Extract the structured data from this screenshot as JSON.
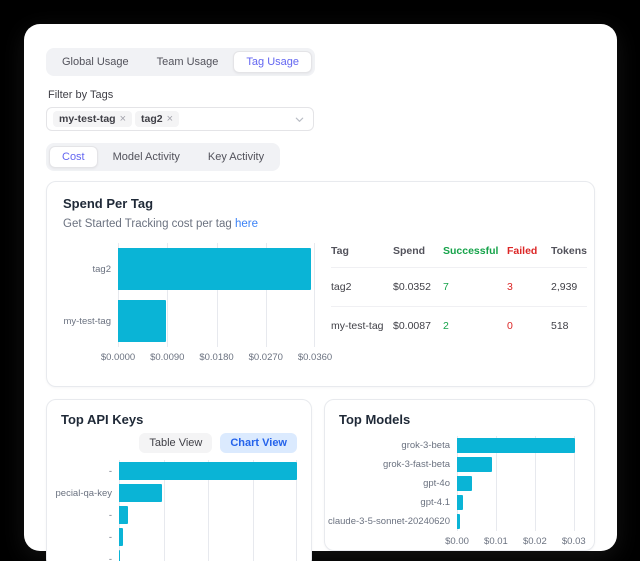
{
  "colors": {
    "bar_cyan": "#0ab4d6",
    "active_tab_indigo": "#6366f1",
    "link_blue": "#3b82f6",
    "chart_view_blue": "#2563eb",
    "success_green": "#16a34a",
    "fail_red": "#dc2626",
    "panel_bg": "#ffffff",
    "page_bg": "#000000"
  },
  "usage_tabs": {
    "items": [
      "Global Usage",
      "Team Usage",
      "Tag Usage"
    ],
    "active": "Tag Usage"
  },
  "filter": {
    "label": "Filter by Tags",
    "selected_tags": [
      "my-test-tag",
      "tag2"
    ],
    "remove_icon": "×"
  },
  "view_tabs": {
    "items": [
      "Cost",
      "Model Activity",
      "Key Activity"
    ],
    "active": "Cost"
  },
  "spend_per_tag": {
    "title": "Spend Per Tag",
    "subtitle_prefix": "Get Started Tracking cost per tag ",
    "subtitle_link": "here",
    "table": {
      "headers": [
        "Tag",
        "Spend",
        "Successful",
        "Failed",
        "Tokens"
      ],
      "rows": [
        {
          "tag": "tag2",
          "spend": "$0.0352",
          "successful": "7",
          "failed": "3",
          "tokens": "2,939"
        },
        {
          "tag": "my-test-tag",
          "spend": "$0.0087",
          "successful": "2",
          "failed": "0",
          "tokens": "518"
        }
      ]
    }
  },
  "top_api_keys": {
    "title": "Top API Keys",
    "table_view_label": "Table View",
    "chart_view_label": "Chart View",
    "active_view": "Chart View"
  },
  "top_models": {
    "title": "Top Models"
  },
  "chart_data": [
    {
      "id": "spend_per_tag",
      "type": "bar",
      "orientation": "horizontal",
      "title": "Spend Per Tag",
      "categories": [
        "tag2",
        "my-test-tag"
      ],
      "values": [
        0.0352,
        0.0087
      ],
      "max": 0.036,
      "unit": "USD",
      "grid": true,
      "grid_values": [
        0,
        0.009,
        0.018,
        0.027,
        0.036
      ],
      "ticks": [
        {
          "label": "$0.0000",
          "value": 0
        },
        {
          "label": "$0.0090",
          "value": 0.009
        },
        {
          "label": "$0.0180",
          "value": 0.018
        },
        {
          "label": "$0.0270",
          "value": 0.027
        },
        {
          "label": "$0.0360",
          "value": 0.036
        }
      ]
    },
    {
      "id": "top_api_keys",
      "type": "bar",
      "orientation": "horizontal",
      "title": "Top API Keys",
      "categories": [
        "-",
        "pecial-qa-key",
        "-",
        "-",
        "-"
      ],
      "values": [
        1.0,
        0.24,
        0.05,
        0.022,
        0.004
      ],
      "max": 1.0,
      "grid": true,
      "grid_values": [
        0,
        0.25,
        0.5,
        0.75,
        1.0
      ],
      "ticks": [],
      "note": "x-axis labels clipped by card edge; values are relative estimates from bar lengths"
    },
    {
      "id": "top_models",
      "type": "bar",
      "orientation": "horizontal",
      "title": "Top Models",
      "categories": [
        "grok-3-beta",
        "grok-3-fast-beta",
        "gpt-4o",
        "gpt-4.1",
        "claude-3-5-sonnet-20240620"
      ],
      "values": [
        0.0302,
        0.0089,
        0.0038,
        0.0016,
        0.0007
      ],
      "max": 0.0316,
      "unit": "USD",
      "grid": true,
      "grid_values": [
        0,
        0.01,
        0.02,
        0.03
      ],
      "ticks": [
        {
          "label": "$0.00",
          "value": 0
        },
        {
          "label": "$0.01",
          "value": 0.01
        },
        {
          "label": "$0.02",
          "value": 0.02
        },
        {
          "label": "$0.03",
          "value": 0.03
        }
      ]
    }
  ]
}
